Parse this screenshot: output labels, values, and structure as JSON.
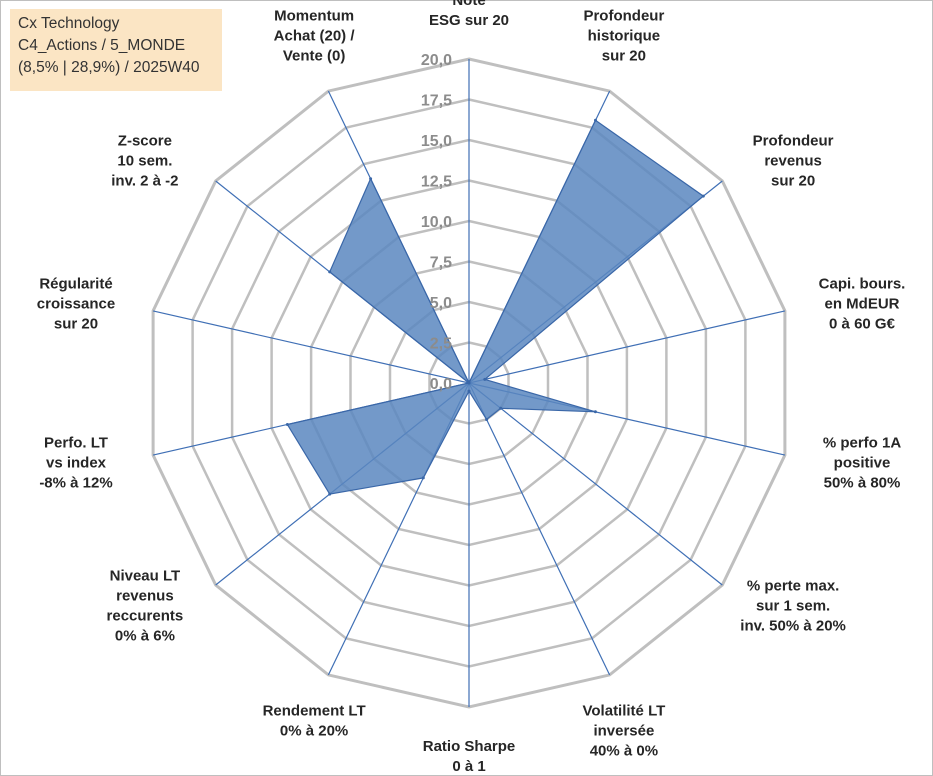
{
  "header": {
    "line1": "Cx Technology",
    "line2": "C4_Actions / 5_MONDE",
    "line3": "(8,5% | 28,9%) / 2025W40"
  },
  "colors": {
    "fill": "#5b87bf",
    "stroke": "#3a67a8",
    "spoke": "#3f6fb5",
    "ring": "#bfbfbf"
  },
  "chart_data": {
    "type": "radar",
    "max": 20,
    "ticks": [
      "0,0",
      "2,5",
      "5,0",
      "7,5",
      "10,0",
      "12,5",
      "15,0",
      "17,5",
      "20,0"
    ],
    "categories": [
      [
        "Note",
        "ESG sur 20"
      ],
      [
        "Profondeur",
        "historique",
        "sur 20"
      ],
      [
        "Profondeur",
        "revenus",
        "sur 20"
      ],
      [
        "Capi. bours.",
        "en MdEUR",
        "0 à 60 G€"
      ],
      [
        "% perfo 1A",
        "positive",
        "50% à 80%"
      ],
      [
        "% perte max.",
        "sur 1 sem.",
        "inv. 50% à 20%"
      ],
      [
        "Volatilité LT",
        "inversée",
        "40% à 0%"
      ],
      [
        "Ratio Sharpe",
        "0 à 1"
      ],
      [
        "Rendement LT",
        "0% à 20%"
      ],
      [
        "Niveau LT",
        "revenus",
        "reccurents",
        "0% à 6%"
      ],
      [
        "Perfo. LT",
        "vs index",
        "-8% à 12%"
      ],
      [
        "Régularité",
        "croissance",
        "sur 20"
      ],
      [
        "Z-score",
        "10 sem.",
        "inv. 2 à -2"
      ],
      [
        "Momentum",
        "Achat (20) /",
        "Vente (0)"
      ]
    ],
    "values": [
      0,
      18,
      18.5,
      1,
      8,
      2.5,
      2.5,
      0.5,
      6.5,
      11,
      11.5,
      0,
      11,
      14
    ],
    "grid": true,
    "legend": "none"
  }
}
